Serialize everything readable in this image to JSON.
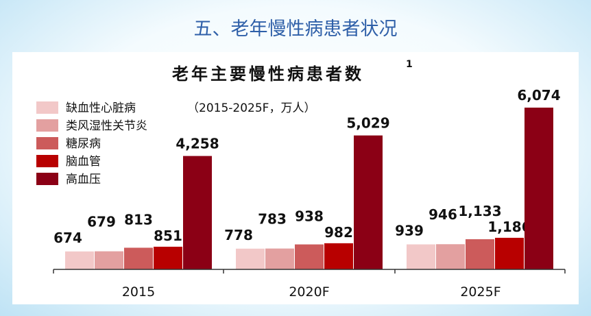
{
  "slide": {
    "title": "五、老年慢性病患者状况"
  },
  "chart_data": {
    "type": "bar",
    "title": "老年主要慢性病患者数",
    "title_superscript": "1",
    "subtitle": "（2015-2025F，万人）",
    "categories": [
      "2015",
      "2020F",
      "2025F"
    ],
    "series": [
      {
        "name": "缺血性心脏病",
        "color": "#f2c8c8",
        "values": [
          674,
          778,
          939
        ],
        "labels": [
          "674",
          "778",
          "939"
        ]
      },
      {
        "name": "类风湿性关节炎",
        "color": "#e3a0a0",
        "values": [
          679,
          783,
          946
        ],
        "labels": [
          "679",
          "783",
          "946"
        ]
      },
      {
        "name": "糖尿病",
        "color": "#cc5b5b",
        "values": [
          813,
          938,
          1133
        ],
        "labels": [
          "813",
          "938",
          "1,133"
        ]
      },
      {
        "name": "脑血管",
        "color": "#b80000",
        "values": [
          851,
          982,
          1186
        ],
        "labels": [
          "851",
          "982",
          "1,186"
        ]
      },
      {
        "name": "高血压",
        "color": "#8b0015",
        "values": [
          4258,
          5029,
          6074
        ],
        "labels": [
          "4,258",
          "5,029",
          "6,074"
        ]
      }
    ],
    "legend": "top-left",
    "grid": false
  }
}
